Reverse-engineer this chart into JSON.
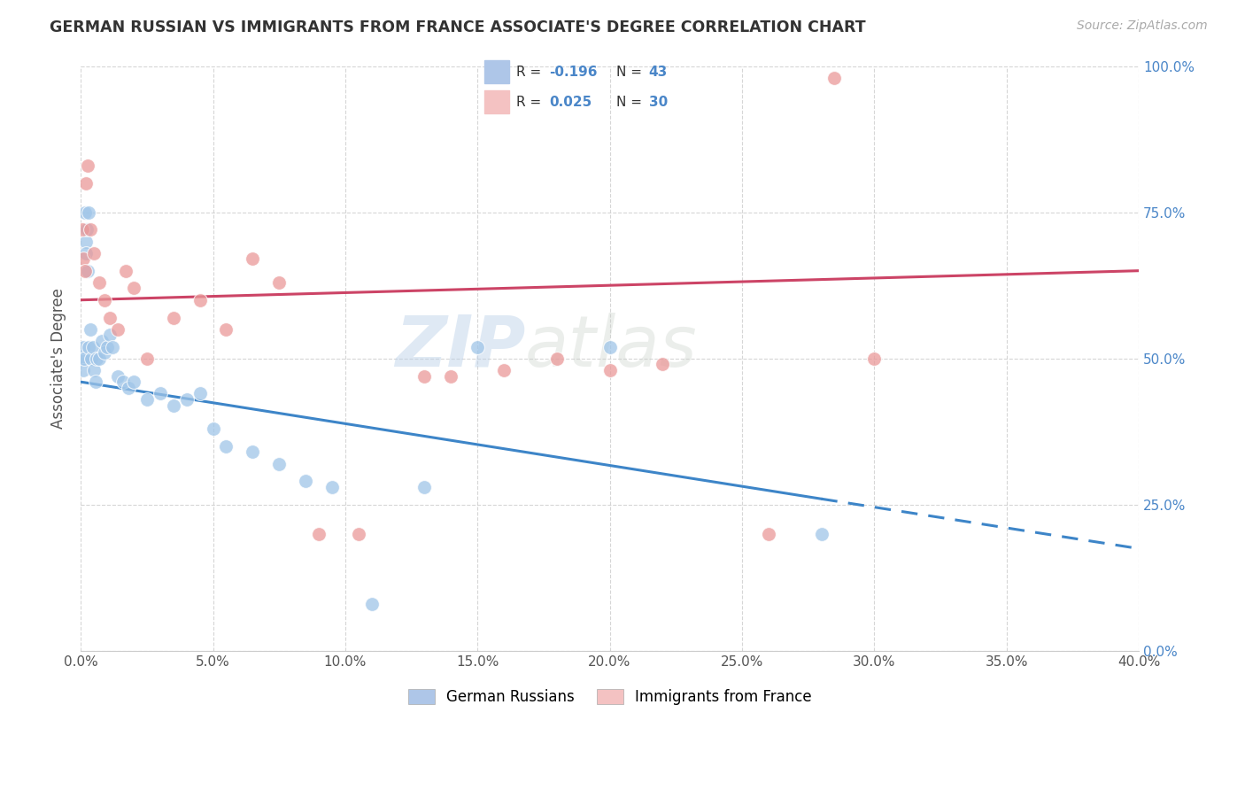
{
  "title": "GERMAN RUSSIAN VS IMMIGRANTS FROM FRANCE ASSOCIATE'S DEGREE CORRELATION CHART",
  "source_text": "Source: ZipAtlas.com",
  "ylabel_label": "Associate's Degree",
  "legend_label1": "German Russians",
  "legend_label2": "Immigrants from France",
  "R1_val": "-0.196",
  "N1_val": "43",
  "R2_val": "0.025",
  "N2_val": "30",
  "blue_color": "#9fc5e8",
  "pink_color": "#ea9999",
  "blue_line_color": "#3d85c8",
  "pink_line_color": "#cc4466",
  "watermark_zip": "ZIP",
  "watermark_atlas": "atlas",
  "xlim": [
    0.0,
    40.0
  ],
  "ylim": [
    0.0,
    100.0
  ],
  "ytick_vals": [
    0.0,
    25.0,
    50.0,
    75.0,
    100.0
  ],
  "xtick_vals": [
    0.0,
    5.0,
    10.0,
    15.0,
    20.0,
    25.0,
    30.0,
    35.0,
    40.0
  ],
  "blue_x": [
    0.05,
    0.08,
    0.1,
    0.12,
    0.15,
    0.18,
    0.2,
    0.22,
    0.25,
    0.28,
    0.3,
    0.35,
    0.4,
    0.45,
    0.5,
    0.55,
    0.6,
    0.7,
    0.8,
    0.9,
    1.0,
    1.1,
    1.2,
    1.4,
    1.6,
    1.8,
    2.0,
    2.5,
    3.0,
    3.5,
    4.0,
    4.5,
    5.0,
    5.5,
    6.5,
    7.5,
    8.5,
    9.5,
    11.0,
    13.0,
    15.0,
    20.0,
    28.0
  ],
  "blue_y": [
    50.0,
    48.0,
    52.0,
    50.0,
    75.0,
    70.0,
    68.0,
    72.0,
    65.0,
    75.0,
    52.0,
    55.0,
    50.0,
    52.0,
    48.0,
    46.0,
    50.0,
    50.0,
    53.0,
    51.0,
    52.0,
    54.0,
    52.0,
    47.0,
    46.0,
    45.0,
    46.0,
    43.0,
    44.0,
    42.0,
    43.0,
    44.0,
    38.0,
    35.0,
    34.0,
    32.0,
    29.0,
    28.0,
    8.0,
    28.0,
    52.0,
    52.0,
    20.0
  ],
  "pink_x": [
    0.05,
    0.08,
    0.15,
    0.2,
    0.25,
    0.35,
    0.5,
    0.7,
    0.9,
    1.1,
    1.4,
    1.7,
    2.0,
    2.5,
    3.5,
    4.5,
    5.5,
    6.5,
    7.5,
    9.0,
    10.5,
    13.0,
    14.0,
    16.0,
    18.0,
    20.0,
    22.0,
    26.0,
    30.0,
    28.5
  ],
  "pink_y": [
    72.0,
    67.0,
    65.0,
    80.0,
    83.0,
    72.0,
    68.0,
    63.0,
    60.0,
    57.0,
    55.0,
    65.0,
    62.0,
    50.0,
    57.0,
    60.0,
    55.0,
    67.0,
    63.0,
    20.0,
    20.0,
    47.0,
    47.0,
    48.0,
    50.0,
    48.0,
    49.0,
    20.0,
    50.0,
    98.0
  ],
  "blue_trend_x0": 0.0,
  "blue_trend_y0": 46.0,
  "blue_trend_x1": 28.0,
  "blue_trend_y1": 26.0,
  "blue_dash_x0": 28.0,
  "blue_dash_y0": 26.0,
  "blue_dash_x1": 40.0,
  "blue_dash_y1": 17.5,
  "pink_trend_x0": 0.0,
  "pink_trend_y0": 60.0,
  "pink_trend_x1": 40.0,
  "pink_trend_y1": 65.0
}
